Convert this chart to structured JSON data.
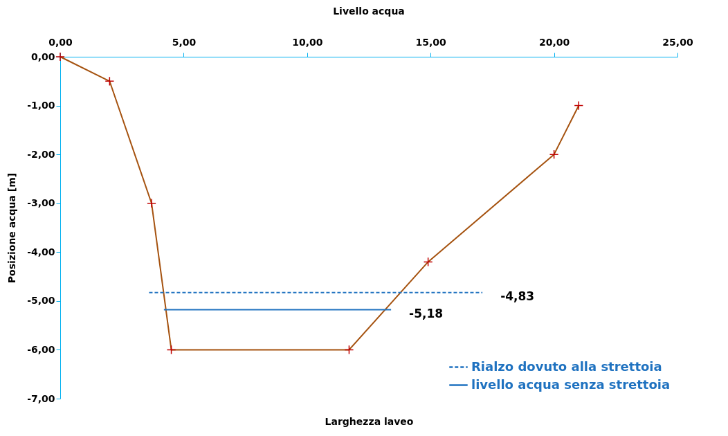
{
  "chart_data": {
    "type": "line",
    "title": "Livello acqua",
    "xlabel": "Larghezza laveo",
    "ylabel": "Posizione acqua [m]",
    "xlim": [
      0,
      25
    ],
    "ylim": [
      -7,
      0
    ],
    "xticks": [
      {
        "value": 0,
        "label": "0,00"
      },
      {
        "value": 5,
        "label": "5,00"
      },
      {
        "value": 10,
        "label": "10,00"
      },
      {
        "value": 15,
        "label": "15,00"
      },
      {
        "value": 20,
        "label": "20,00"
      },
      {
        "value": 25,
        "label": "25,00"
      }
    ],
    "yticks": [
      {
        "value": 0,
        "label": "0,00"
      },
      {
        "value": -1,
        "label": "-1,00"
      },
      {
        "value": -2,
        "label": "-2,00"
      },
      {
        "value": -3,
        "label": "-3,00"
      },
      {
        "value": -4,
        "label": "-4,00"
      },
      {
        "value": -5,
        "label": "-5,00"
      },
      {
        "value": -6,
        "label": "-6,00"
      },
      {
        "value": -7,
        "label": "-7,00"
      }
    ],
    "grid": false,
    "legend": "bottom right",
    "series": [
      {
        "color": "#a5520f",
        "marker": "cross",
        "x": [
          0,
          2,
          3.7,
          4.5,
          11.7,
          14.9,
          20,
          21
        ],
        "values": [
          0,
          -0.5,
          -3,
          -6,
          -6,
          -4.2,
          -2,
          -1
        ]
      },
      {
        "name": "Rialzo dovuto alla strettoia",
        "color": "#1f72c0",
        "line_style": "dashed",
        "x": [
          3.6,
          17.1
        ],
        "values": [
          -4.83,
          -4.83
        ]
      },
      {
        "name": "livello acqua senza strettoia",
        "color": "#1f72c0",
        "line_style": "solid",
        "x": [
          4.2,
          13.4
        ],
        "values": [
          -5.18,
          -5.18
        ]
      }
    ],
    "annotations": [
      {
        "text": "-4,83",
        "x": 17.1,
        "y": -4.83
      },
      {
        "text": "-5,18",
        "x": 13.4,
        "y": -5.18
      }
    ]
  }
}
